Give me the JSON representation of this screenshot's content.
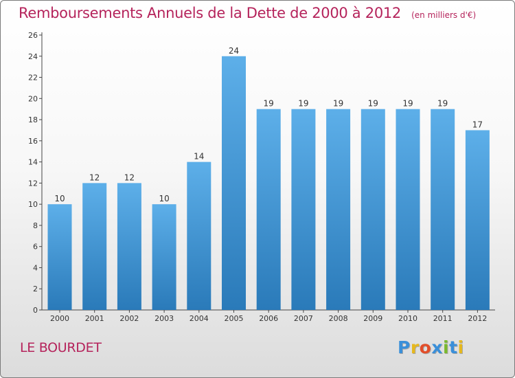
{
  "header": {
    "title": "Remboursements Annuels de la Dette de 2000 à 2012",
    "unit": "(en milliers d'€)"
  },
  "footer": {
    "place": "LE BOURDET",
    "logo_letters": [
      "P",
      "r",
      "o",
      "x",
      "i",
      "t",
      "i"
    ],
    "logo_colors": [
      "#3a8fd9",
      "#e6b81e",
      "#e24e2a",
      "#3a8fd9",
      "#7ab82e",
      "#3a8fd9",
      "#e6b81e"
    ]
  },
  "colors": {
    "bar_light": "#5dafe9",
    "bar_dark": "#2a7ab9",
    "title": "#b5235b"
  },
  "chart_data": {
    "type": "bar",
    "categories": [
      "2000",
      "2001",
      "2002",
      "2003",
      "2004",
      "2005",
      "2006",
      "2007",
      "2008",
      "2009",
      "2010",
      "2011",
      "2012"
    ],
    "values": [
      10,
      12,
      12,
      10,
      14,
      24,
      19,
      19,
      19,
      19,
      19,
      19,
      17
    ],
    "title": "Remboursements Annuels de la Dette de 2000 à 2012",
    "xlabel": "",
    "ylabel": "",
    "ylim": [
      0,
      26
    ],
    "yticks": [
      0,
      2,
      4,
      6,
      8,
      10,
      12,
      14,
      16,
      18,
      20,
      22,
      24,
      26
    ],
    "grid": false,
    "data_labels": true
  }
}
